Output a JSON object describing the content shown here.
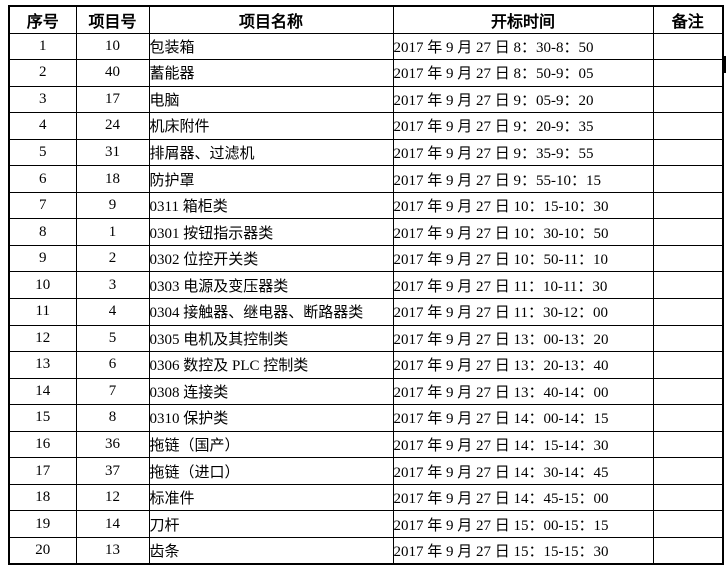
{
  "colors": {
    "border": "#000000",
    "page_background": "#ffffff",
    "text": "#000000"
  },
  "table": {
    "headers": [
      "序号",
      "项目号",
      "项目名称",
      "开标时间",
      "备注"
    ],
    "rows": [
      {
        "seq": "1",
        "project_no": "10",
        "name": "包装箱",
        "time": "2017 年 9 月 27 日 8：30-8：50",
        "remark": ""
      },
      {
        "seq": "2",
        "project_no": "40",
        "name": "蓄能器",
        "time": "2017 年 9 月 27 日 8：50-9：05",
        "remark": ""
      },
      {
        "seq": "3",
        "project_no": "17",
        "name": "电脑",
        "time": "2017 年 9 月 27 日 9：05-9：20",
        "remark": ""
      },
      {
        "seq": "4",
        "project_no": "24",
        "name": "机床附件",
        "time": "2017 年 9 月 27 日 9：20-9：35",
        "remark": ""
      },
      {
        "seq": "5",
        "project_no": "31",
        "name": "排屑器、过滤机",
        "time": "2017 年 9 月 27 日 9：35-9：55",
        "remark": ""
      },
      {
        "seq": "6",
        "project_no": "18",
        "name": "防护罩",
        "time": "2017 年 9 月 27 日 9：55-10：15",
        "remark": ""
      },
      {
        "seq": "7",
        "project_no": "9",
        "name": "0311 箱柜类",
        "time": "2017 年 9 月 27 日 10：15-10：30",
        "remark": ""
      },
      {
        "seq": "8",
        "project_no": "1",
        "name": "0301 按钮指示器类",
        "time": "2017 年 9 月 27 日 10：30-10：50",
        "remark": ""
      },
      {
        "seq": "9",
        "project_no": "2",
        "name": "0302 位控开关类",
        "time": "2017 年 9 月 27 日 10：50-11：10",
        "remark": ""
      },
      {
        "seq": "10",
        "project_no": "3",
        "name": "0303 电源及变压器类",
        "time": "2017 年 9 月 27 日 11：10-11：30",
        "remark": ""
      },
      {
        "seq": "11",
        "project_no": "4",
        "name": "0304 接触器、继电器、断路器类",
        "time": "2017 年 9 月 27 日 11：30-12：00",
        "remark": ""
      },
      {
        "seq": "12",
        "project_no": "5",
        "name": "0305 电机及其控制类",
        "time": "2017 年 9 月 27 日 13：00-13：20",
        "remark": ""
      },
      {
        "seq": "13",
        "project_no": "6",
        "name": "0306 数控及 PLC 控制类",
        "time": "2017 年 9 月 27 日 13：20-13：40",
        "remark": ""
      },
      {
        "seq": "14",
        "project_no": "7",
        "name": "0308 连接类",
        "time": "2017 年 9 月 27 日 13：40-14：00",
        "remark": ""
      },
      {
        "seq": "15",
        "project_no": "8",
        "name": "0310 保护类",
        "time": "2017 年 9 月 27 日 14：00-14：15",
        "remark": ""
      },
      {
        "seq": "16",
        "project_no": "36",
        "name": "拖链（国产）",
        "time": "2017 年 9 月 27 日 14：15-14：30",
        "remark": ""
      },
      {
        "seq": "17",
        "project_no": "37",
        "name": "拖链（进口）",
        "time": "2017 年 9 月 27 日 14：30-14：45",
        "remark": ""
      },
      {
        "seq": "18",
        "project_no": "12",
        "name": "标准件",
        "time": "2017 年 9 月 27 日 14：45-15：00",
        "remark": ""
      },
      {
        "seq": "19",
        "project_no": "14",
        "name": "刀杆",
        "time": "2017 年 9 月 27 日 15：00-15：15",
        "remark": ""
      },
      {
        "seq": "20",
        "project_no": "13",
        "name": "齿条",
        "time": "2017 年 9 月 27 日 15：15-15：30",
        "remark": ""
      }
    ]
  }
}
